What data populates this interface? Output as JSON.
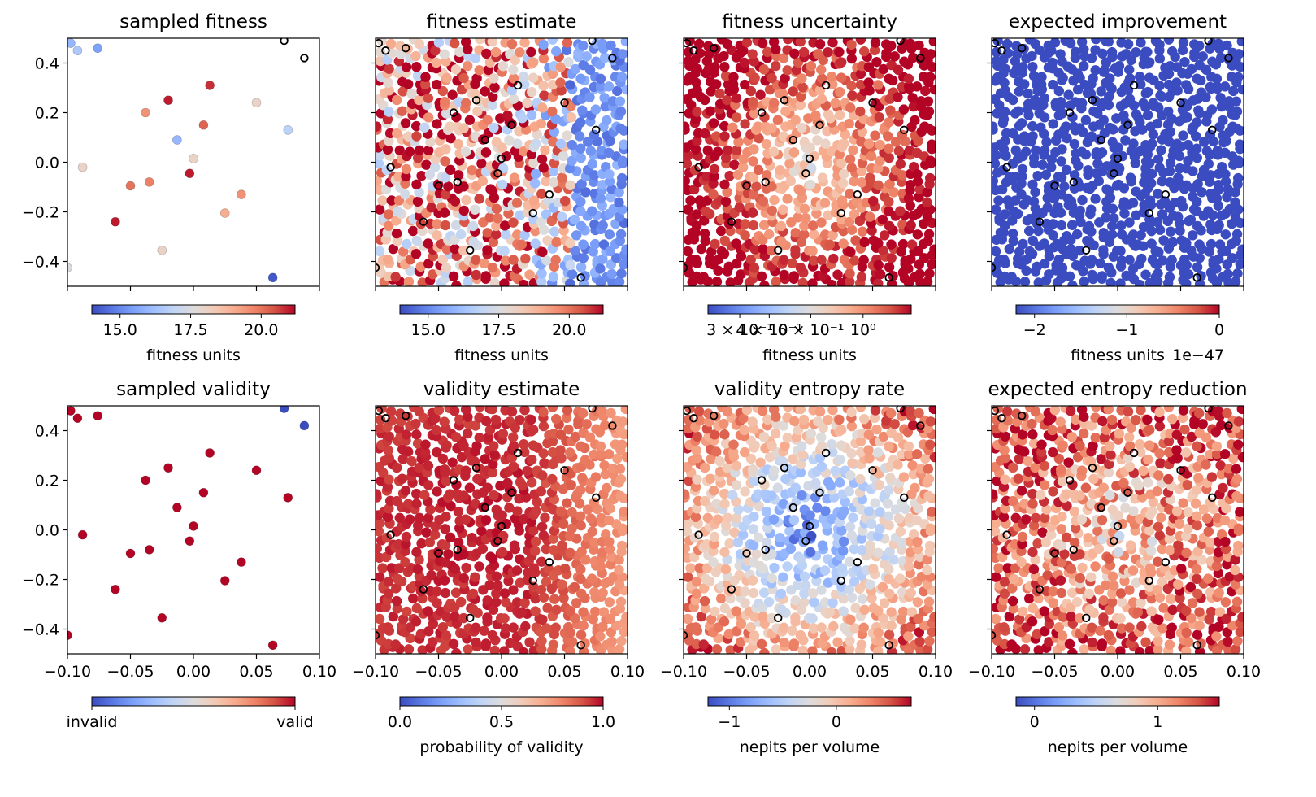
{
  "colors": {
    "cmap": [
      "#3b4cc0",
      "#5977e3",
      "#7b9ff9",
      "#9ebeff",
      "#c0d4f5",
      "#dddcdc",
      "#f2cbb7",
      "#f7ac8e",
      "#ee8468",
      "#d65244",
      "#b40426"
    ],
    "sample_edge": "#000000",
    "axis": "#000000",
    "background": "#ffffff"
  },
  "shared_axes": {
    "xlim": [
      -0.1,
      0.1
    ],
    "ylim": [
      -0.5,
      0.5
    ],
    "xticks": [
      -0.1,
      -0.05,
      0.0,
      0.05,
      0.1
    ],
    "xtick_labels": [
      "−0.10",
      "−0.05",
      "0.00",
      "0.05",
      "0.10"
    ],
    "yticks": [
      -0.4,
      -0.2,
      0.0,
      0.2,
      0.4
    ],
    "ytick_labels": [
      "−0.4",
      "−0.2",
      "0.0",
      "0.2",
      "0.4"
    ]
  },
  "chart_data": [
    {
      "type": "scatter",
      "title": "sampled fitness",
      "colorbar": {
        "label": "fitness units",
        "ticks": [
          {
            "value": 15.0,
            "label": "15.0"
          },
          {
            "value": 17.5,
            "label": "17.5"
          },
          {
            "value": 20.0,
            "label": "20.0"
          }
        ],
        "range": [
          14.0,
          21.2
        ]
      },
      "series": [
        {
          "marker": "filled-circle",
          "points": [
            [
              -0.0975,
              0.48,
              16.0
            ],
            [
              -0.092,
              0.45,
              16.5
            ],
            [
              -0.076,
              0.46,
              15.5
            ],
            [
              -0.02,
              0.25,
              21.0
            ],
            [
              -0.038,
              0.2,
              19.5
            ],
            [
              -0.062,
              -0.24,
              21.0
            ],
            [
              0.013,
              0.31,
              20.8
            ],
            [
              0.008,
              0.15,
              20.2
            ],
            [
              -0.013,
              0.09,
              16.0
            ],
            [
              0.0,
              0.015,
              18.0
            ],
            [
              -0.003,
              -0.045,
              21.0
            ],
            [
              -0.035,
              -0.08,
              19.8
            ],
            [
              -0.05,
              -0.095,
              20.0
            ],
            [
              0.038,
              -0.13,
              19.5
            ],
            [
              -0.088,
              -0.02,
              18.0
            ],
            [
              0.025,
              -0.205,
              19.0
            ],
            [
              -0.025,
              -0.355,
              18.0
            ],
            [
              0.063,
              -0.465,
              14.2
            ],
            [
              0.05,
              0.24,
              18.0
            ],
            [
              0.075,
              0.13,
              16.8
            ],
            [
              -0.1,
              -0.425,
              17.5
            ]
          ]
        },
        {
          "marker": "hollow-circle",
          "points": [
            [
              0.072,
              0.49
            ],
            [
              0.088,
              0.42
            ]
          ]
        }
      ]
    },
    {
      "type": "scatter",
      "title": "fitness estimate",
      "colorbar": {
        "label": "fitness units",
        "ticks": [
          {
            "value": 15.0,
            "label": "15.0"
          },
          {
            "value": 17.5,
            "label": "17.5"
          },
          {
            "value": 20.0,
            "label": "20.0"
          }
        ],
        "range": [
          14.0,
          21.2
        ]
      },
      "dense_field": "fitness_estimate"
    },
    {
      "type": "scatter",
      "title": "fitness uncertainty",
      "colorbar": {
        "label": "fitness units",
        "scale": "log",
        "ticks": [
          {
            "value": 0.3,
            "label": "3 × 10⁻¹"
          },
          {
            "value": 0.4,
            "label": "4 × 10⁻¹"
          },
          {
            "value": 0.6,
            "label": "6 × 10⁻¹"
          },
          {
            "value": 1.0,
            "label": "10⁰"
          }
        ],
        "range": [
          0.22,
          1.6
        ]
      },
      "dense_field": "fitness_uncertainty"
    },
    {
      "type": "scatter",
      "title": "expected improvement",
      "colorbar": {
        "label": "fitness units",
        "offset_text": "1e−47",
        "ticks": [
          {
            "value": -2,
            "label": "−2"
          },
          {
            "value": -1,
            "label": "−1"
          },
          {
            "value": 0,
            "label": "0"
          }
        ],
        "range": [
          -2.2,
          0
        ]
      },
      "dense_field": "expected_improvement"
    },
    {
      "type": "scatter",
      "title": "sampled validity",
      "colorbar": {
        "label": "",
        "ticks": [
          {
            "value": 0,
            "label": "invalid"
          },
          {
            "value": 1,
            "label": "valid"
          }
        ],
        "range": [
          0,
          1
        ]
      },
      "series": [
        {
          "marker": "filled-circle",
          "points": [
            [
              -0.0975,
              0.48,
              1
            ],
            [
              -0.092,
              0.45,
              1
            ],
            [
              -0.076,
              0.46,
              1
            ],
            [
              -0.02,
              0.25,
              1
            ],
            [
              -0.038,
              0.2,
              1
            ],
            [
              -0.062,
              -0.24,
              1
            ],
            [
              0.013,
              0.31,
              1
            ],
            [
              0.008,
              0.15,
              1
            ],
            [
              -0.013,
              0.09,
              1
            ],
            [
              0.0,
              0.015,
              1
            ],
            [
              -0.003,
              -0.045,
              1
            ],
            [
              -0.035,
              -0.08,
              1
            ],
            [
              -0.05,
              -0.095,
              1
            ],
            [
              0.038,
              -0.13,
              1
            ],
            [
              -0.088,
              -0.02,
              1
            ],
            [
              0.025,
              -0.205,
              1
            ],
            [
              -0.025,
              -0.355,
              1
            ],
            [
              0.063,
              -0.465,
              1
            ],
            [
              0.05,
              0.24,
              1
            ],
            [
              0.075,
              0.13,
              1
            ],
            [
              -0.1,
              -0.425,
              1
            ],
            [
              0.072,
              0.49,
              0
            ],
            [
              0.088,
              0.42,
              0
            ]
          ]
        }
      ]
    },
    {
      "type": "scatter",
      "title": "validity estimate",
      "colorbar": {
        "label": "probability of validity",
        "ticks": [
          {
            "value": 0.0,
            "label": "0.0"
          },
          {
            "value": 0.5,
            "label": "0.5"
          },
          {
            "value": 1.0,
            "label": "1.0"
          }
        ],
        "range": [
          0,
          1
        ]
      },
      "dense_field": "validity_estimate"
    },
    {
      "type": "scatter",
      "title": "validity entropy rate",
      "colorbar": {
        "label": "nepits per volume",
        "ticks": [
          {
            "value": -1,
            "label": "−1"
          },
          {
            "value": 0,
            "label": "0"
          }
        ],
        "range": [
          -1.2,
          0.7
        ]
      },
      "dense_field": "validity_entropy_rate"
    },
    {
      "type": "scatter",
      "title": "expected entropy reduction",
      "colorbar": {
        "label": "nepits per volume",
        "ticks": [
          {
            "value": 0,
            "label": "0"
          },
          {
            "value": 1,
            "label": "1"
          }
        ],
        "range": [
          -0.15,
          1.5
        ]
      },
      "dense_field": "expected_entropy_reduction"
    }
  ],
  "samples": [
    [
      -0.0975,
      0.48
    ],
    [
      -0.092,
      0.45
    ],
    [
      -0.076,
      0.46
    ],
    [
      -0.02,
      0.25
    ],
    [
      -0.038,
      0.2
    ],
    [
      -0.062,
      -0.24
    ],
    [
      0.013,
      0.31
    ],
    [
      0.008,
      0.15
    ],
    [
      -0.013,
      0.09
    ],
    [
      0.0,
      0.015
    ],
    [
      -0.003,
      -0.045
    ],
    [
      -0.035,
      -0.08
    ],
    [
      -0.05,
      -0.095
    ],
    [
      0.038,
      -0.13
    ],
    [
      -0.088,
      -0.02
    ],
    [
      0.025,
      -0.205
    ],
    [
      -0.025,
      -0.355
    ],
    [
      0.063,
      -0.465
    ],
    [
      0.05,
      0.24
    ],
    [
      0.075,
      0.13
    ],
    [
      -0.1,
      -0.425
    ],
    [
      0.072,
      0.49
    ],
    [
      0.088,
      0.42
    ]
  ]
}
